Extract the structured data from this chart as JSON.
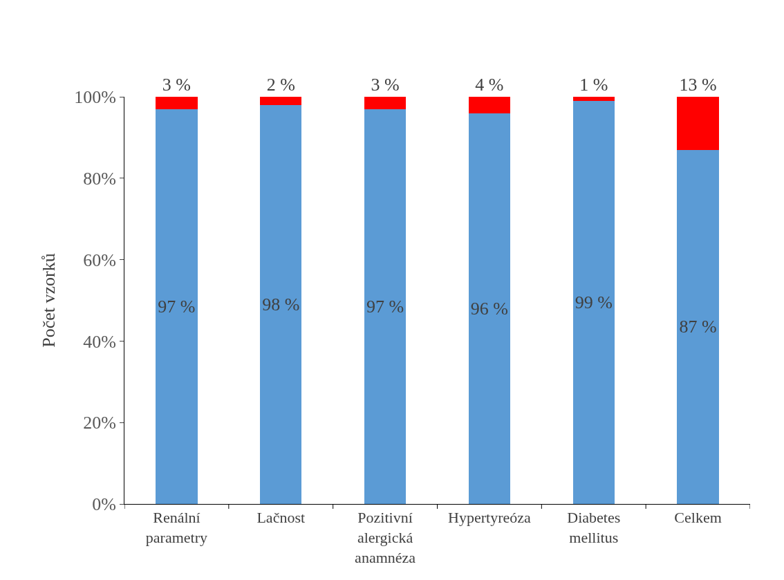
{
  "chart_data": {
    "type": "bar",
    "stacked": true,
    "ylabel": "Počet vzorků",
    "categories": [
      "Renální parametry",
      "Lačnost",
      "Pozitivní alergická anamnéza",
      "Hypertyreóza",
      "Diabetes mellitus",
      "Celkem"
    ],
    "series": [
      {
        "color": "#5b9bd5",
        "values": [
          97,
          98,
          97,
          96,
          99,
          87
        ],
        "value_labels": [
          "97 %",
          "98 %",
          "97 %",
          "96 %",
          "99 %",
          "87 %"
        ]
      },
      {
        "color": "#ff0000",
        "values": [
          3,
          2,
          3,
          4,
          1,
          13
        ],
        "value_labels": [
          "3 %",
          "2 %",
          "3 %",
          "4 %",
          "1 %",
          "13 %"
        ]
      }
    ],
    "ylim": [
      0,
      100
    ],
    "yticks": [
      {
        "value": 0,
        "label": "0%"
      },
      {
        "value": 20,
        "label": "20%"
      },
      {
        "value": 40,
        "label": "40%"
      },
      {
        "value": 60,
        "label": "60%"
      },
      {
        "value": 80,
        "label": "80%"
      },
      {
        "value": 100,
        "label": "100%"
      }
    ]
  }
}
